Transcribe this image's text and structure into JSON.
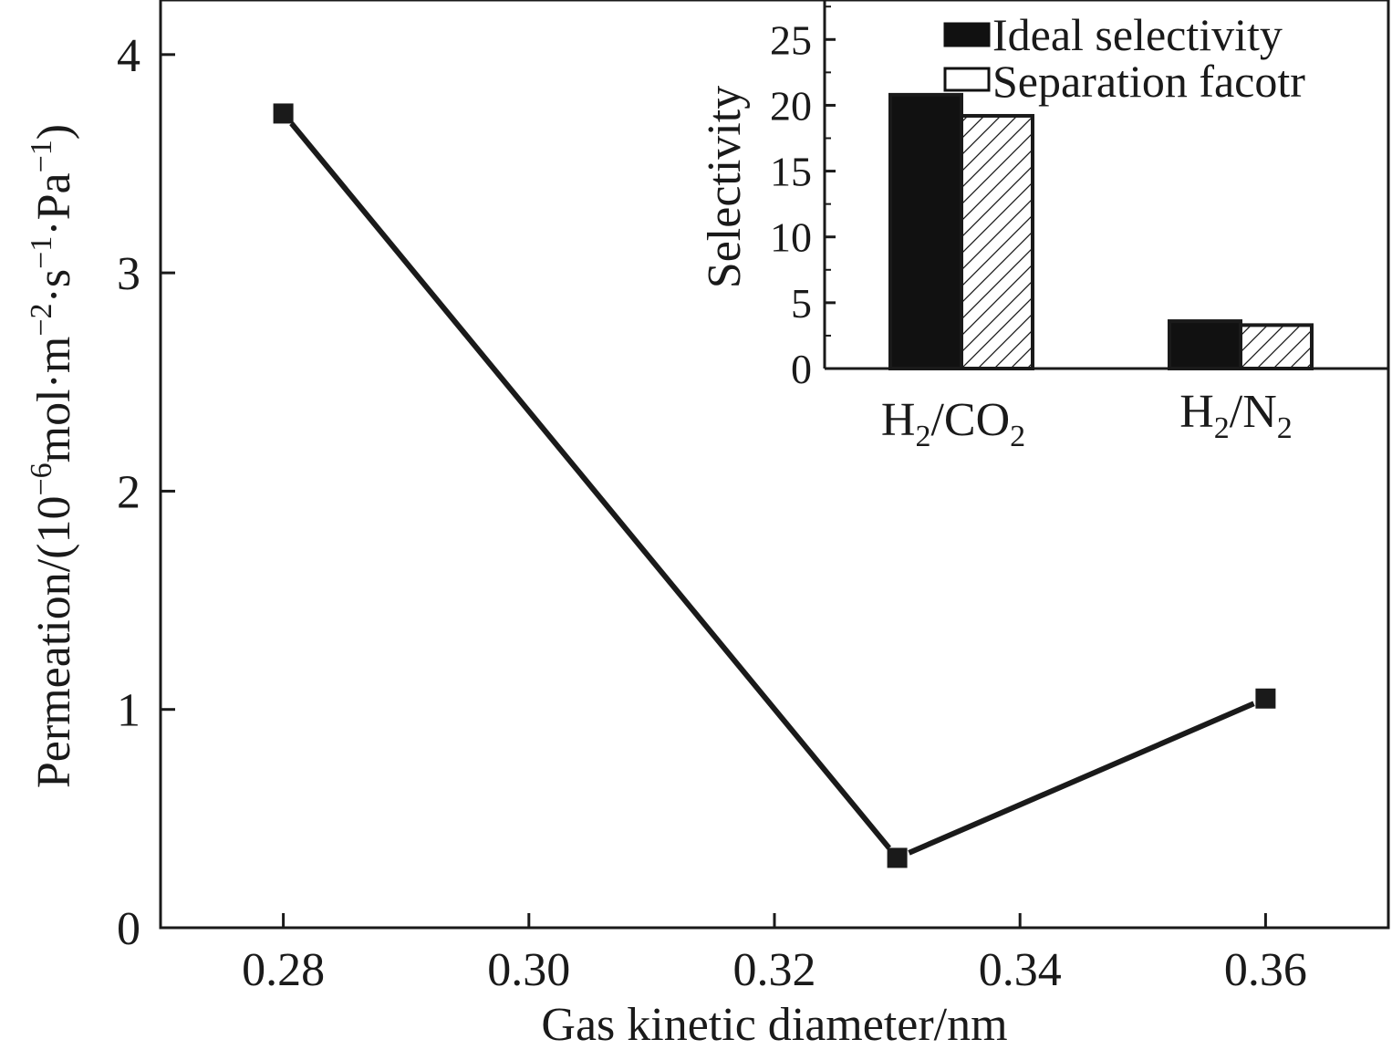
{
  "chart_data": [
    {
      "type": "line",
      "role": "main",
      "xlabel": "Gas kinetic diameter/nm",
      "ylabel": {
        "prefix": "Permeation/(10",
        "exp1": "−6",
        "unit1": "mol·m",
        "exp2": "−2",
        "unit2": "·s",
        "exp3": "−1",
        "unit3": "·Pa",
        "exp4": "−1",
        "suffix": ")"
      },
      "xlim": [
        0.27,
        0.37
      ],
      "ylim": [
        0,
        4.25
      ],
      "xticks": [
        0.28,
        0.3,
        0.32,
        0.34,
        0.36
      ],
      "xtick_labels": [
        "0.28",
        "0.30",
        "0.32",
        "0.34",
        "0.36"
      ],
      "yticks": [
        0,
        1,
        2,
        3,
        4
      ],
      "ytick_labels": [
        "0",
        "1",
        "2",
        "3",
        "4"
      ],
      "series": [
        {
          "name": "Permeation",
          "x": [
            0.28,
            0.33,
            0.36
          ],
          "y": [
            3.73,
            0.32,
            1.05
          ]
        }
      ]
    },
    {
      "type": "bar",
      "role": "inset",
      "ylabel": "Selectivity",
      "ylim": [
        0,
        28
      ],
      "yticks": [
        0,
        5,
        10,
        15,
        20,
        25
      ],
      "ytick_labels": [
        "0",
        "5",
        "10",
        "15",
        "20",
        "25"
      ],
      "categories": [
        {
          "main": "H",
          "sub1": "2",
          "mid": "/CO",
          "sub2": "2"
        },
        {
          "main": "H",
          "sub1": "2",
          "mid": "/N",
          "sub2": "2"
        }
      ],
      "series": [
        {
          "name": "Ideal selectivity",
          "values": [
            20.8,
            3.6
          ],
          "fill": "#111111"
        },
        {
          "name": "Separation facotr",
          "values": [
            19.2,
            3.3
          ],
          "fill": "hatched"
        }
      ],
      "legend_position": "top-right"
    }
  ],
  "colors": {
    "ink": "#1a1a1a",
    "bar_solid": "#111111",
    "background": "#ffffff"
  }
}
